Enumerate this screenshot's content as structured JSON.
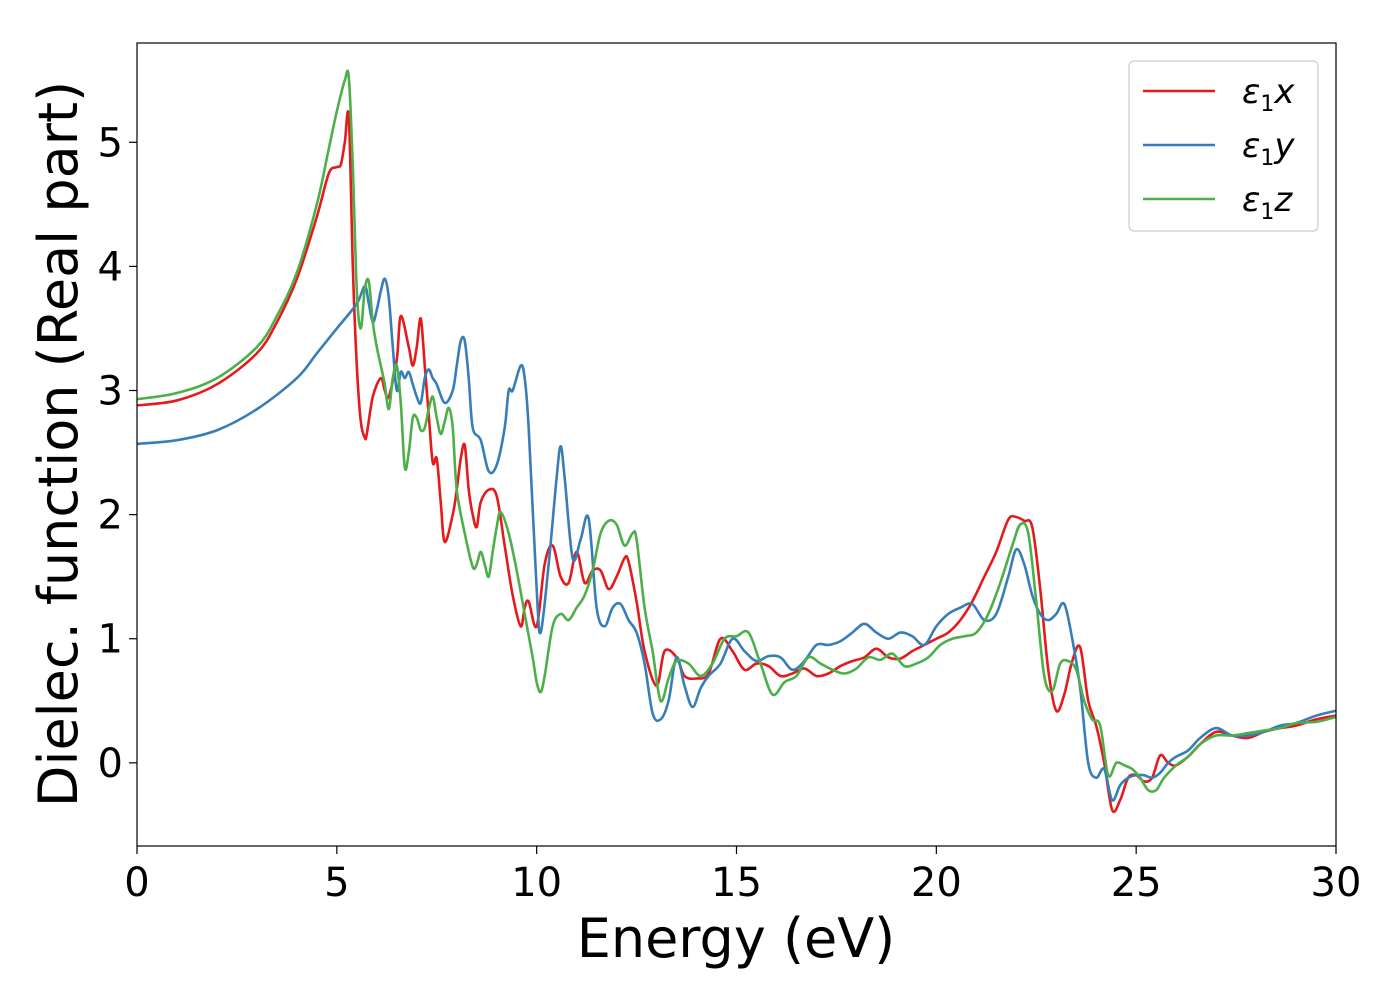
{
  "chart_data": {
    "type": "line",
    "xlabel": "Energy (eV)",
    "ylabel": "Dielec. function (Real part)",
    "xlim": [
      0,
      30
    ],
    "ylim": [
      -0.67,
      5.8
    ],
    "xticks": [
      0,
      5,
      10,
      15,
      20,
      25,
      30
    ],
    "yticks": [
      0,
      1,
      2,
      3,
      4,
      5
    ],
    "grid": false,
    "legend_position": "top-right",
    "series": [
      {
        "name": "ε1x",
        "legend_base": "ε",
        "legend_sub": "1",
        "legend_tail": "x",
        "color": "#e41a1c",
        "x": [
          0,
          1,
          2,
          3,
          3.5,
          4,
          4.5,
          4.8,
          5,
          5.1,
          5.2,
          5.3,
          5.4,
          5.5,
          5.6,
          5.7,
          5.75,
          5.9,
          6.1,
          6.2,
          6.3,
          6.5,
          6.6,
          6.8,
          6.9,
          7.0,
          7.1,
          7.2,
          7.3,
          7.4,
          7.5,
          7.6,
          7.7,
          7.9,
          8.0,
          8.1,
          8.2,
          8.3,
          8.4,
          8.5,
          8.6,
          8.8,
          9.0,
          9.2,
          9.4,
          9.6,
          9.7,
          9.8,
          10.0,
          10.2,
          10.4,
          10.6,
          10.8,
          11.0,
          11.2,
          11.4,
          11.6,
          11.8,
          12.0,
          12.2,
          12.3,
          12.5,
          12.7,
          13.0,
          13.2,
          13.5,
          13.7,
          14.0,
          14.3,
          14.6,
          14.9,
          15.2,
          15.5,
          15.8,
          16.1,
          16.4,
          16.7,
          17.0,
          17.3,
          17.6,
          17.9,
          18.2,
          18.5,
          18.8,
          19.1,
          19.4,
          19.7,
          20.0,
          20.3,
          20.6,
          20.9,
          21.2,
          21.5,
          21.8,
          22.0,
          22.2,
          22.4,
          22.6,
          22.8,
          23.0,
          23.2,
          23.4,
          23.6,
          23.8,
          24.0,
          24.2,
          24.4,
          24.6,
          24.8,
          25.0,
          25.2,
          25.4,
          25.6,
          25.8,
          26.0,
          26.3,
          26.6,
          27.0,
          27.4,
          27.8,
          28.2,
          28.6,
          29.0,
          29.5,
          30.0
        ],
        "y": [
          2.88,
          2.92,
          3.05,
          3.3,
          3.55,
          3.9,
          4.4,
          4.75,
          4.8,
          4.82,
          5.0,
          5.2,
          4.0,
          3.2,
          2.75,
          2.62,
          2.65,
          2.95,
          3.1,
          3.0,
          2.95,
          3.25,
          3.6,
          3.35,
          3.2,
          3.35,
          3.58,
          3.2,
          2.8,
          2.42,
          2.45,
          2.1,
          1.78,
          2.0,
          2.2,
          2.45,
          2.56,
          2.2,
          2.0,
          1.9,
          2.1,
          2.2,
          2.15,
          1.75,
          1.35,
          1.1,
          1.25,
          1.3,
          1.1,
          1.6,
          1.75,
          1.5,
          1.45,
          1.7,
          1.45,
          1.55,
          1.55,
          1.4,
          1.5,
          1.65,
          1.62,
          1.3,
          0.9,
          0.62,
          0.9,
          0.85,
          0.7,
          0.68,
          0.72,
          1.0,
          0.9,
          0.75,
          0.8,
          0.78,
          0.7,
          0.72,
          0.76,
          0.7,
          0.72,
          0.78,
          0.82,
          0.85,
          0.92,
          0.85,
          0.84,
          0.9,
          0.95,
          1.0,
          1.05,
          1.15,
          1.3,
          1.5,
          1.7,
          1.96,
          1.98,
          1.95,
          1.9,
          1.4,
          0.75,
          0.42,
          0.55,
          0.82,
          0.93,
          0.5,
          0.3,
          0.0,
          -0.38,
          -0.3,
          -0.12,
          -0.1,
          -0.15,
          -0.12,
          0.06,
          0.0,
          -0.02,
          0.05,
          0.15,
          0.25,
          0.22,
          0.2,
          0.25,
          0.28,
          0.3,
          0.35,
          0.38
        ]
      },
      {
        "name": "ε1y",
        "legend_base": "ε",
        "legend_sub": "1",
        "legend_tail": "y",
        "color": "#377eb8",
        "x": [
          0,
          1,
          2,
          3,
          4,
          4.5,
          5,
          5.5,
          5.7,
          5.8,
          5.9,
          6.0,
          6.1,
          6.2,
          6.3,
          6.4,
          6.5,
          6.6,
          6.7,
          6.8,
          6.9,
          7.0,
          7.1,
          7.2,
          7.3,
          7.4,
          7.5,
          7.7,
          7.9,
          8.0,
          8.1,
          8.2,
          8.3,
          8.4,
          8.6,
          8.8,
          9.0,
          9.2,
          9.3,
          9.4,
          9.6,
          9.7,
          9.8,
          10.0,
          10.1,
          10.3,
          10.5,
          10.6,
          10.7,
          10.9,
          11.1,
          11.3,
          11.5,
          11.7,
          11.9,
          12.1,
          12.3,
          12.5,
          12.7,
          12.9,
          13.1,
          13.3,
          13.5,
          13.7,
          13.9,
          14.1,
          14.3,
          14.6,
          14.9,
          15.2,
          15.5,
          15.8,
          16.1,
          16.4,
          16.7,
          17.0,
          17.3,
          17.6,
          17.9,
          18.2,
          18.5,
          18.8,
          19.1,
          19.4,
          19.7,
          20.0,
          20.3,
          20.6,
          20.9,
          21.2,
          21.5,
          21.8,
          22.0,
          22.2,
          22.4,
          22.6,
          22.8,
          23.0,
          23.2,
          23.4,
          23.6,
          23.8,
          24.0,
          24.2,
          24.4,
          24.6,
          24.8,
          25.0,
          25.2,
          25.4,
          25.6,
          25.8,
          26.0,
          26.3,
          26.6,
          27.0,
          27.4,
          27.8,
          28.2,
          28.6,
          29.0,
          29.5,
          30.0
        ],
        "y": [
          2.57,
          2.6,
          2.68,
          2.85,
          3.1,
          3.3,
          3.5,
          3.7,
          3.84,
          3.7,
          3.55,
          3.65,
          3.8,
          3.9,
          3.75,
          3.35,
          3.0,
          3.15,
          3.1,
          3.15,
          3.05,
          2.95,
          2.9,
          3.1,
          3.17,
          3.1,
          3.05,
          2.9,
          3.0,
          3.2,
          3.4,
          3.4,
          3.1,
          2.7,
          2.6,
          2.35,
          2.4,
          2.7,
          3.0,
          3.0,
          3.2,
          3.1,
          2.7,
          1.4,
          1.05,
          1.6,
          2.3,
          2.55,
          2.3,
          1.65,
          1.8,
          1.97,
          1.25,
          1.1,
          1.25,
          1.28,
          1.15,
          1.05,
          0.8,
          0.4,
          0.35,
          0.5,
          0.85,
          0.62,
          0.45,
          0.6,
          0.7,
          0.8,
          1.0,
          0.9,
          0.82,
          0.86,
          0.85,
          0.75,
          0.82,
          0.95,
          0.95,
          0.98,
          1.05,
          1.12,
          1.05,
          1.0,
          1.05,
          1.02,
          0.95,
          1.1,
          1.2,
          1.25,
          1.28,
          1.15,
          1.2,
          1.5,
          1.72,
          1.6,
          1.35,
          1.2,
          1.15,
          1.2,
          1.28,
          1.0,
          0.6,
          0.0,
          -0.12,
          -0.05,
          -0.3,
          -0.18,
          -0.12,
          -0.1,
          -0.1,
          -0.12,
          -0.08,
          0.0,
          0.05,
          0.1,
          0.2,
          0.28,
          0.22,
          0.22,
          0.25,
          0.3,
          0.32,
          0.38,
          0.42
        ]
      },
      {
        "name": "ε1z",
        "legend_base": "ε",
        "legend_sub": "1",
        "legend_tail": "z",
        "color": "#4daf4a",
        "x": [
          0,
          1,
          2,
          3,
          3.5,
          4,
          4.5,
          4.8,
          5.0,
          5.2,
          5.3,
          5.4,
          5.5,
          5.6,
          5.7,
          5.8,
          5.9,
          6.0,
          6.1,
          6.2,
          6.3,
          6.4,
          6.5,
          6.6,
          6.7,
          6.8,
          6.9,
          7.0,
          7.1,
          7.2,
          7.3,
          7.4,
          7.5,
          7.6,
          7.7,
          7.8,
          7.9,
          8.0,
          8.2,
          8.4,
          8.5,
          8.6,
          8.7,
          8.8,
          8.9,
          9.0,
          9.1,
          9.3,
          9.5,
          9.7,
          9.9,
          10.0,
          10.1,
          10.2,
          10.4,
          10.6,
          10.8,
          11.0,
          11.2,
          11.4,
          11.6,
          11.8,
          12.0,
          12.2,
          12.4,
          12.5,
          12.7,
          12.9,
          13.1,
          13.3,
          13.5,
          13.8,
          14.1,
          14.4,
          14.7,
          15.0,
          15.3,
          15.6,
          15.9,
          16.2,
          16.5,
          16.8,
          17.1,
          17.4,
          17.7,
          18.0,
          18.3,
          18.6,
          18.9,
          19.2,
          19.5,
          19.8,
          20.1,
          20.4,
          20.7,
          21.0,
          21.3,
          21.6,
          21.9,
          22.1,
          22.3,
          22.5,
          22.7,
          22.9,
          23.1,
          23.3,
          23.5,
          23.7,
          23.9,
          24.1,
          24.3,
          24.5,
          24.7,
          24.9,
          25.1,
          25.3,
          25.5,
          25.7,
          26.0,
          26.3,
          26.6,
          27.0,
          27.4,
          27.8,
          28.2,
          28.6,
          29.0,
          29.5,
          30.0
        ],
        "y": [
          2.93,
          2.98,
          3.1,
          3.35,
          3.6,
          3.95,
          4.5,
          4.95,
          5.25,
          5.5,
          5.52,
          4.8,
          3.8,
          3.5,
          3.82,
          3.88,
          3.55,
          3.35,
          3.2,
          3.05,
          2.85,
          3.1,
          3.2,
          2.9,
          2.38,
          2.5,
          2.78,
          2.78,
          2.68,
          2.7,
          2.85,
          2.95,
          2.78,
          2.65,
          2.75,
          2.86,
          2.7,
          2.2,
          1.85,
          1.58,
          1.6,
          1.7,
          1.6,
          1.5,
          1.7,
          1.9,
          2.02,
          1.85,
          1.55,
          1.2,
          0.85,
          0.65,
          0.57,
          0.7,
          1.1,
          1.2,
          1.15,
          1.25,
          1.35,
          1.55,
          1.85,
          1.95,
          1.92,
          1.75,
          1.85,
          1.8,
          1.25,
          0.9,
          0.5,
          0.68,
          0.82,
          0.8,
          0.7,
          0.8,
          1.0,
          1.02,
          1.05,
          0.8,
          0.55,
          0.65,
          0.7,
          0.85,
          0.8,
          0.75,
          0.72,
          0.76,
          0.85,
          0.83,
          0.88,
          0.78,
          0.8,
          0.85,
          0.95,
          1.0,
          1.02,
          1.05,
          1.2,
          1.45,
          1.75,
          1.92,
          1.85,
          1.3,
          0.7,
          0.58,
          0.8,
          0.82,
          0.75,
          0.5,
          0.35,
          0.3,
          -0.1,
          0.0,
          -0.02,
          -0.05,
          -0.12,
          -0.22,
          -0.22,
          -0.12,
          -0.02,
          0.05,
          0.15,
          0.22,
          0.22,
          0.24,
          0.26,
          0.28,
          0.32,
          0.33,
          0.37
        ]
      }
    ]
  }
}
